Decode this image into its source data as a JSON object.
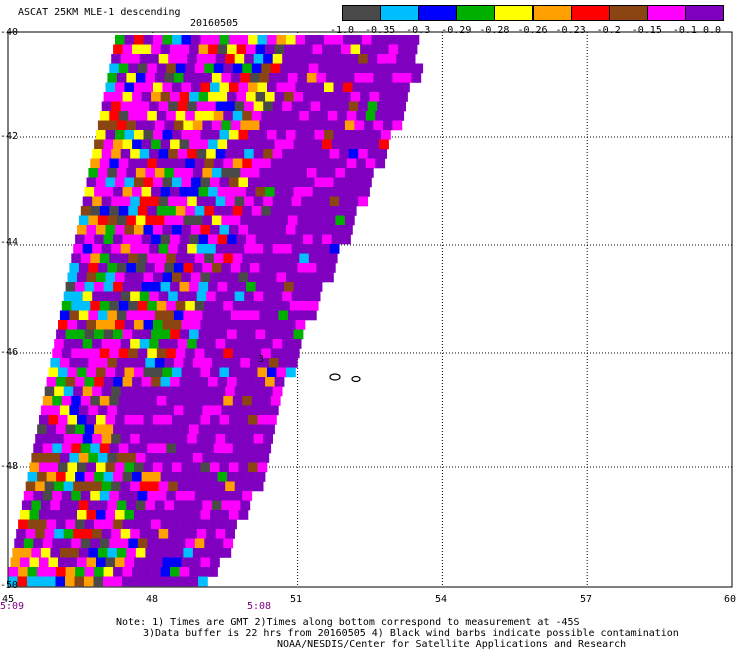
{
  "header": {
    "title": "ASCAT 25KM MLE-1 descending",
    "date": "20160505"
  },
  "colorbar": {
    "labels": [
      "-1.0",
      "-0.35",
      "-0.3",
      "-0.29",
      "-0.28",
      "-0.26",
      "-0.23",
      "-0.2",
      "-0.15",
      "-0.1",
      "0.0"
    ],
    "colors": [
      "#4a4a4a",
      "#00bfff",
      "#0000ff",
      "#00b000",
      "#ffff00",
      "#ffa000",
      "#ff0000",
      "#8b4513",
      "#ff00ff",
      "#8000c0"
    ]
  },
  "axes": {
    "lat_ticks": [
      "-40",
      "-42",
      "-44",
      "-46",
      "-48",
      "-50"
    ],
    "lon_ticks": [
      "45",
      "48",
      "51",
      "54",
      "57",
      "60"
    ],
    "lat_range": [
      -40,
      -50
    ],
    "lon_range": [
      45,
      60
    ]
  },
  "times": [
    {
      "label": "5:09",
      "lon": 45.0
    },
    {
      "label": "5:08",
      "lon": 47.0
    }
  ],
  "map_marks": {
    "buffer_label": "3"
  },
  "notes": {
    "line1": "Note: 1) Times are GMT 2)Times along bottom correspond to measurement at -45S",
    "line2": "3)Data buffer is 22 hrs from 20160505 4) Black wind barbs indicate possible contamination",
    "line3": "NOAA/NESDIS/Center for Satellite Applications and Research"
  }
}
